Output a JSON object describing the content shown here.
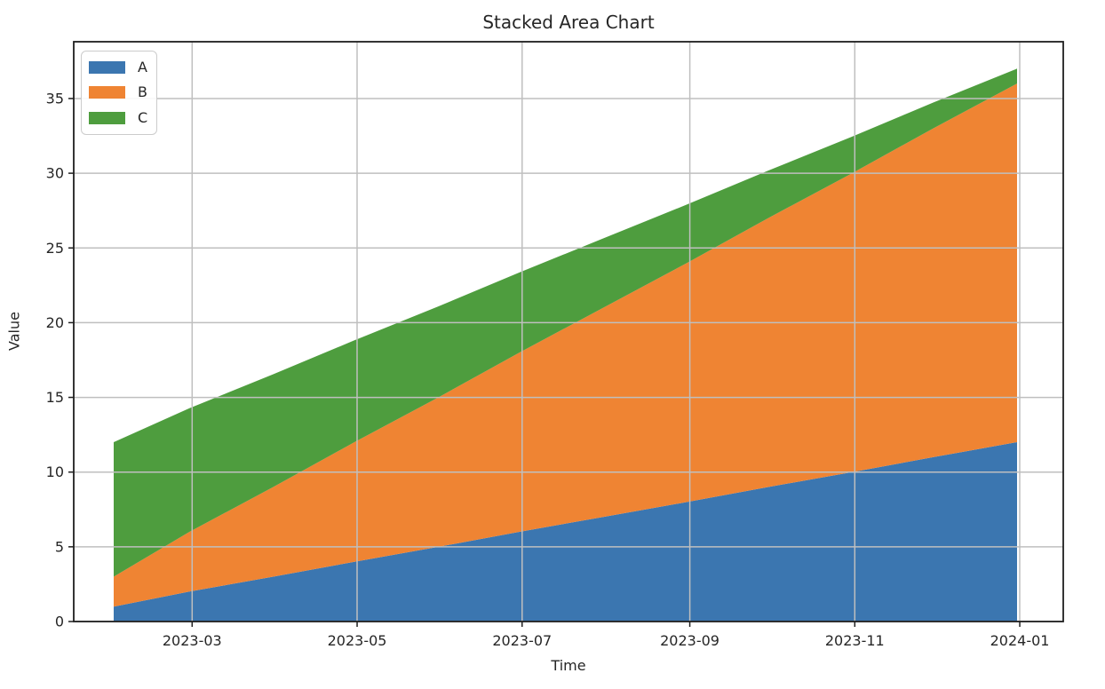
{
  "figure": {
    "title": "Stacked Area Chart",
    "xlabel": "Time",
    "ylabel": "Value"
  },
  "chart_data": {
    "type": "area",
    "stacked": true,
    "title": "Stacked Area Chart",
    "xlabel": "Time",
    "ylabel": "Value",
    "x": [
      "2023-01-31",
      "2023-02-28",
      "2023-03-31",
      "2023-04-30",
      "2023-05-31",
      "2023-06-30",
      "2023-07-31",
      "2023-08-31",
      "2023-09-30",
      "2023-10-31",
      "2023-11-30",
      "2023-12-31"
    ],
    "series": [
      {
        "name": "A",
        "color": "#3b76b0",
        "values": [
          1,
          2,
          3,
          4,
          5,
          6,
          7,
          8,
          9,
          10,
          11,
          12
        ]
      },
      {
        "name": "B",
        "color": "#ef8433",
        "values": [
          2,
          4,
          6,
          8,
          10,
          12,
          14,
          16,
          18,
          20,
          22,
          24
        ]
      },
      {
        "name": "C",
        "color": "#4e9d3e",
        "values": [
          9,
          8.27,
          7.55,
          6.82,
          6.09,
          5.36,
          4.64,
          3.91,
          3.18,
          2.45,
          1.73,
          1
        ]
      }
    ],
    "stack_totals_first_last": [
      12,
      37
    ],
    "xticks": [
      "2023-03",
      "2023-05",
      "2023-07",
      "2023-09",
      "2023-11",
      "2024-01"
    ],
    "yticks": [
      0,
      5,
      10,
      15,
      20,
      25,
      30,
      35
    ],
    "ylim": [
      0,
      38.8
    ],
    "grid": true,
    "legend_position": "upper left",
    "legend_entries": [
      "A",
      "B",
      "C"
    ]
  },
  "colors": {
    "grid": "#bfbfbf",
    "axis": "#1f1f1f",
    "text": "#262626",
    "background": "#ffffff",
    "legend_border": "#cccccc"
  }
}
